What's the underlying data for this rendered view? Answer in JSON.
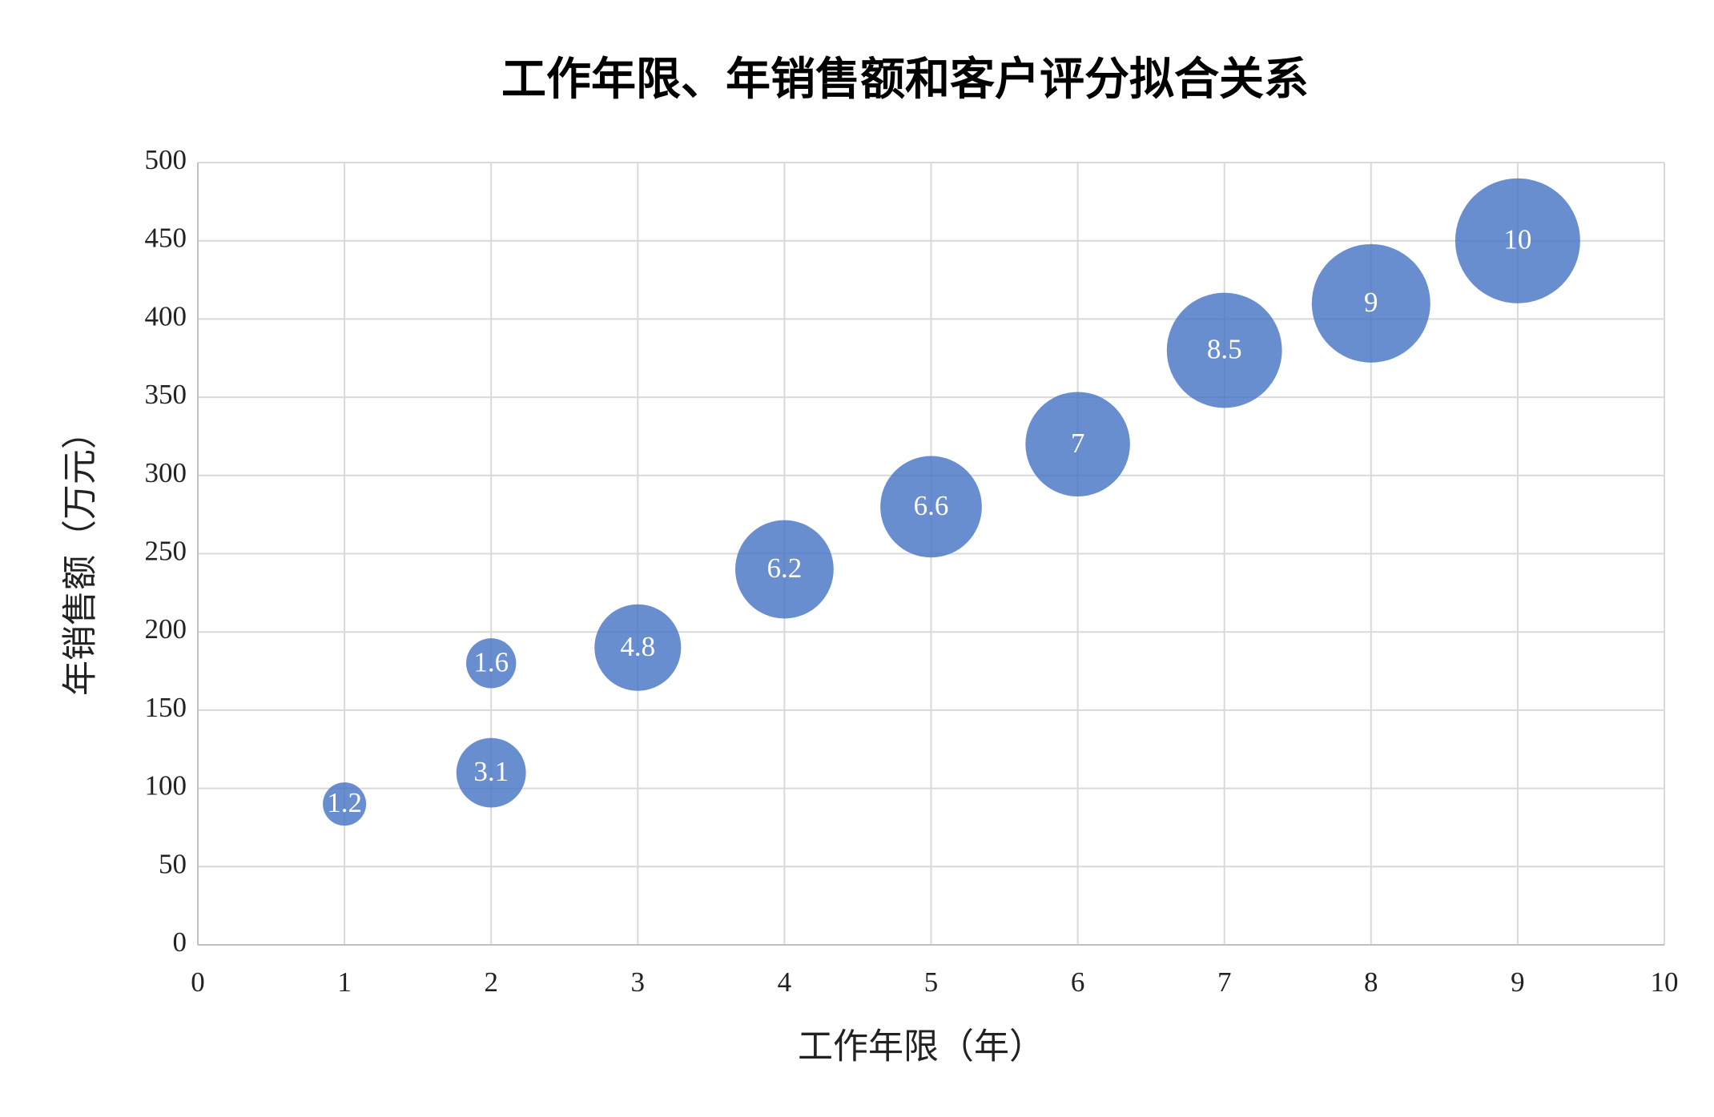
{
  "chart_data": {
    "type": "bubble",
    "title": "工作年限、年销售额和客户评分拟合关系",
    "x_label": "工作年限（年）",
    "y_label": "年销售额（万元）",
    "x": [
      1,
      2,
      2,
      3,
      4,
      5,
      6,
      7,
      8,
      9
    ],
    "values": [
      90,
      180,
      110,
      190,
      240,
      280,
      320,
      380,
      410,
      450
    ],
    "sizes": [
      1.2,
      1.6,
      3.1,
      4.8,
      6.2,
      6.6,
      7,
      8.5,
      9,
      10
    ],
    "color": "#4472c4",
    "xlim": [
      0,
      10
    ],
    "xticks": [
      0,
      1,
      2,
      3,
      4,
      5,
      6,
      7,
      8,
      9,
      10
    ],
    "ylim": [
      0,
      500
    ],
    "yticks": [
      0,
      50,
      100,
      150,
      200,
      250,
      300,
      350,
      400,
      450,
      500
    ],
    "grid": true
  }
}
